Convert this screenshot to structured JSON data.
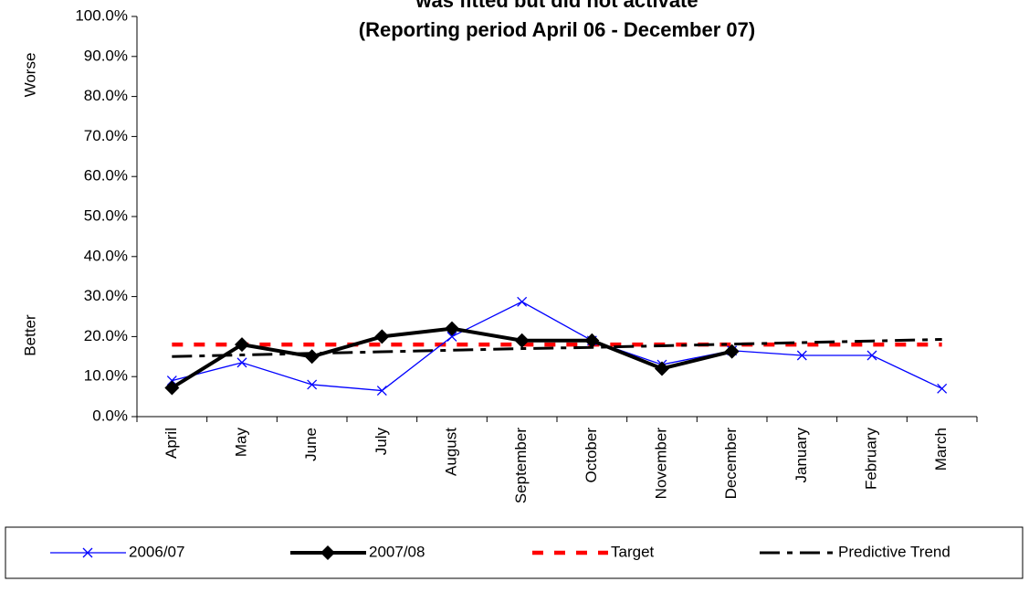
{
  "chart_data": {
    "type": "line",
    "title": "was fitted but did not activate",
    "subtitle": "(Reporting period  April 06 - December 07)",
    "annotations": [
      "Worse",
      "Better"
    ],
    "categories": [
      "April",
      "May",
      "June",
      "July",
      "August",
      "September",
      "October",
      "November",
      "December",
      "January",
      "February",
      "March"
    ],
    "series": [
      {
        "name": "2006/07",
        "color": "#0000ff",
        "style": "thin-cross",
        "values": [
          9.0,
          13.5,
          8.0,
          6.5,
          20.0,
          28.7,
          19.0,
          13.0,
          16.5,
          15.3,
          15.3,
          7.0
        ]
      },
      {
        "name": "2007/08",
        "color": "#000000",
        "style": "thick-diamond",
        "values": [
          7.2,
          18.0,
          15.0,
          20.0,
          22.0,
          19.0,
          19.0,
          12.0,
          16.3,
          null,
          null,
          null
        ]
      },
      {
        "name": "Target",
        "color": "#ff0000",
        "style": "dash",
        "values": [
          18,
          18,
          18,
          18,
          18,
          18,
          18,
          18,
          18,
          18,
          18,
          18
        ]
      },
      {
        "name": "Predictive Trend",
        "color": "#000000",
        "style": "dash-dot",
        "values": [
          15.0,
          15.4,
          15.8,
          16.2,
          16.6,
          17.0,
          17.3,
          17.7,
          18.1,
          18.5,
          18.9,
          19.3
        ]
      }
    ],
    "ylim": [
      0,
      100
    ],
    "yticks": [
      {
        "value": 0,
        "label": "0.0%"
      },
      {
        "value": 10,
        "label": "10.0%"
      },
      {
        "value": 20,
        "label": "20.0%"
      },
      {
        "value": 30,
        "label": "30.0%"
      },
      {
        "value": 40,
        "label": "40.0%"
      },
      {
        "value": 50,
        "label": "50.0%"
      },
      {
        "value": 60,
        "label": "60.0%"
      },
      {
        "value": 70,
        "label": "70.0%"
      },
      {
        "value": 80,
        "label": "80.0%"
      },
      {
        "value": 90,
        "label": "90.0%"
      },
      {
        "value": 100,
        "label": "100.0%"
      }
    ],
    "grid": false,
    "legend": "bottom"
  }
}
